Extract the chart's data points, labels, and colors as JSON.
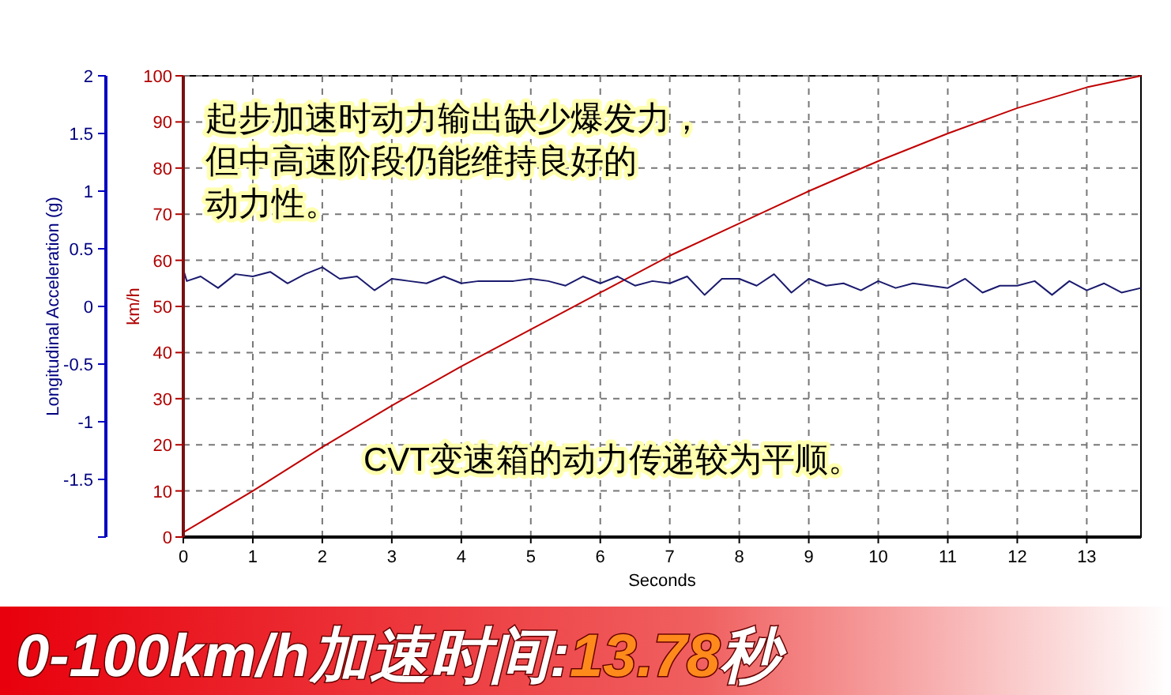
{
  "chart_data": {
    "type": "line",
    "title": "0-100km/h加速时间:13.78秒",
    "xlabel": "Seconds",
    "ylabel": "km/h",
    "y2label": "Longitudinal Acceleration (g)",
    "xlim": [
      0,
      13.78
    ],
    "xticks": [
      0,
      1,
      2,
      3,
      4,
      5,
      6,
      7,
      8,
      9,
      10,
      11,
      12,
      13
    ],
    "ylim": [
      0,
      100
    ],
    "yticks": [
      0,
      10,
      20,
      30,
      40,
      50,
      60,
      70,
      80,
      90,
      100
    ],
    "y2lim": [
      -2,
      2
    ],
    "y2ticks": [
      {
        "value": -2,
        "label": null
      },
      -1.5,
      -1,
      -0.5,
      0,
      0.5,
      1,
      1.5,
      2
    ],
    "grid": true,
    "series": [
      {
        "color": "#c00000",
        "x": [
          0,
          1,
          2,
          3,
          4,
          5,
          6,
          7,
          8,
          9,
          10,
          11,
          12,
          13,
          13.78
        ],
        "values": [
          1,
          10,
          19.5,
          28.5,
          37,
          45,
          53,
          61,
          68,
          75,
          81.5,
          87.5,
          93,
          97.5,
          100
        ]
      },
      {
        "color": "#1a1a6e",
        "axis": "y2",
        "x": [
          0,
          0.05,
          0.25,
          0.5,
          0.75,
          1,
          1.25,
          1.5,
          1.75,
          2,
          2.25,
          2.5,
          2.75,
          3,
          3.25,
          3.5,
          3.75,
          4,
          4.25,
          4.5,
          4.75,
          5,
          5.25,
          5.5,
          5.75,
          6,
          6.25,
          6.5,
          6.75,
          7,
          7.25,
          7.5,
          7.75,
          8,
          8.25,
          8.5,
          8.75,
          9,
          9.25,
          9.5,
          9.75,
          10,
          10.25,
          10.5,
          10.75,
          11,
          11.25,
          11.5,
          11.75,
          12,
          12.25,
          12.5,
          12.75,
          13,
          13.25,
          13.5,
          13.78
        ],
        "values": [
          0.32,
          0.22,
          0.26,
          0.16,
          0.28,
          0.26,
          0.3,
          0.2,
          0.28,
          0.34,
          0.24,
          0.26,
          0.14,
          0.24,
          0.22,
          0.2,
          0.26,
          0.2,
          0.22,
          0.22,
          0.22,
          0.24,
          0.22,
          0.18,
          0.26,
          0.2,
          0.26,
          0.18,
          0.22,
          0.2,
          0.26,
          0.1,
          0.24,
          0.24,
          0.18,
          0.28,
          0.12,
          0.24,
          0.18,
          0.2,
          0.14,
          0.22,
          0.16,
          0.2,
          0.18,
          0.16,
          0.24,
          0.12,
          0.18,
          0.18,
          0.22,
          0.1,
          0.22,
          0.14,
          0.2,
          0.12,
          0.16
        ]
      }
    ],
    "annotations": [
      "起步加速时动力输出缺少爆发力，但中高速阶段仍能维持良好的动力性。",
      "CVT变速箱的动力传递较为平顺。"
    ]
  }
}
